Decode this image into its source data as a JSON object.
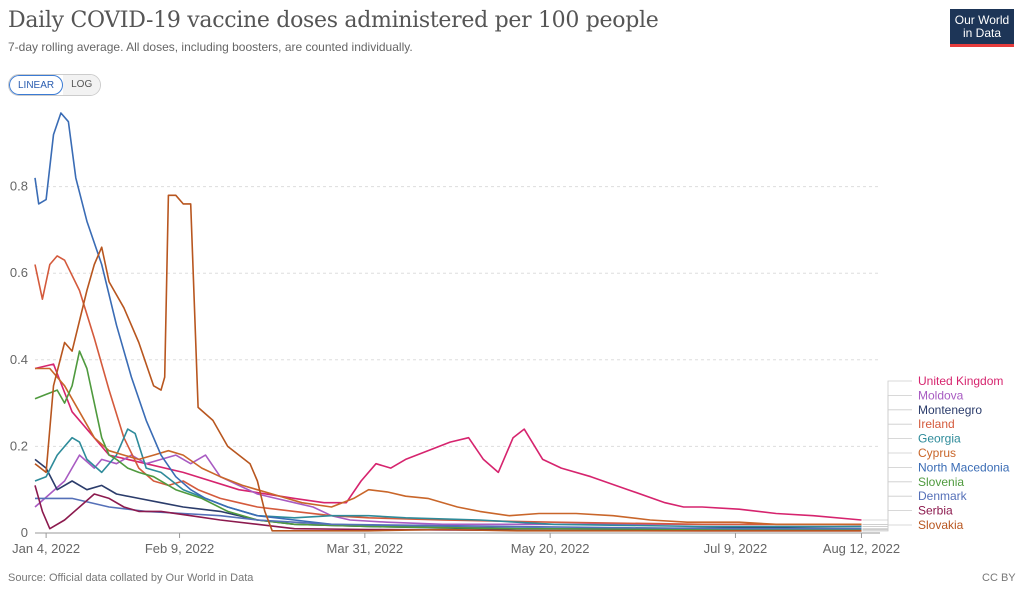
{
  "header": {
    "title": "Daily COVID-19 vaccine doses administered per 100 people",
    "subtitle": "7-day rolling average. All doses, including boosters, are counted individually.",
    "logo_line1": "Our World",
    "logo_line2": "in Data"
  },
  "controls": {
    "linear_label": "LINEAR",
    "log_label": "LOG",
    "selected": "LINEAR"
  },
  "footer": {
    "source": "Source: Official data collated by Our World in Data",
    "license": "CC BY"
  },
  "chart_data": {
    "type": "line",
    "title": "Daily COVID-19 vaccine doses administered per 100 people",
    "x_ticks": [
      "Jan 4, 2022",
      "Feb 9, 2022",
      "Mar 31, 2022",
      "May 20, 2022",
      "Jul 9, 2022",
      "Aug 12, 2022"
    ],
    "x_tick_days": [
      3,
      39,
      89,
      139,
      189,
      223
    ],
    "x_range": [
      "2022-01-01",
      "2022-08-28"
    ],
    "ylim": [
      0,
      1.0
    ],
    "y_ticks": [
      0,
      0.2,
      0.4,
      0.6,
      0.8
    ],
    "grid": "horizontal-dashed",
    "legend_position": "right",
    "series": [
      {
        "name": "United Kingdom",
        "color": "#d6246e",
        "points": [
          [
            0,
            0.38
          ],
          [
            5,
            0.39
          ],
          [
            10,
            0.28
          ],
          [
            20,
            0.18
          ],
          [
            30,
            0.16
          ],
          [
            40,
            0.14
          ],
          [
            55,
            0.1
          ],
          [
            70,
            0.08
          ],
          [
            78,
            0.07
          ],
          [
            84,
            0.07
          ],
          [
            88,
            0.12
          ],
          [
            92,
            0.16
          ],
          [
            96,
            0.15
          ],
          [
            100,
            0.17
          ],
          [
            106,
            0.19
          ],
          [
            112,
            0.21
          ],
          [
            117,
            0.22
          ],
          [
            121,
            0.17
          ],
          [
            125,
            0.14
          ],
          [
            129,
            0.22
          ],
          [
            132,
            0.24
          ],
          [
            137,
            0.17
          ],
          [
            142,
            0.15
          ],
          [
            150,
            0.13
          ],
          [
            160,
            0.1
          ],
          [
            170,
            0.07
          ],
          [
            175,
            0.06
          ],
          [
            180,
            0.06
          ],
          [
            190,
            0.055
          ],
          [
            200,
            0.045
          ],
          [
            210,
            0.04
          ],
          [
            223,
            0.03
          ]
        ]
      },
      {
        "name": "Moldova",
        "color": "#a85bc2",
        "points": [
          [
            0,
            0.06
          ],
          [
            4,
            0.09
          ],
          [
            8,
            0.12
          ],
          [
            12,
            0.18
          ],
          [
            16,
            0.15
          ],
          [
            18,
            0.17
          ],
          [
            22,
            0.16
          ],
          [
            26,
            0.18
          ],
          [
            30,
            0.16
          ],
          [
            34,
            0.17
          ],
          [
            38,
            0.18
          ],
          [
            42,
            0.16
          ],
          [
            46,
            0.18
          ],
          [
            50,
            0.13
          ],
          [
            55,
            0.11
          ],
          [
            60,
            0.09
          ],
          [
            65,
            0.08
          ],
          [
            70,
            0.07
          ],
          [
            75,
            0.06
          ],
          [
            80,
            0.04
          ],
          [
            85,
            0.03
          ],
          [
            95,
            0.025
          ],
          [
            110,
            0.02
          ],
          [
            140,
            0.02
          ],
          [
            180,
            0.02
          ],
          [
            223,
            0.02
          ]
        ]
      },
      {
        "name": "Montenegro",
        "color": "#2b3c6b",
        "points": [
          [
            0,
            0.17
          ],
          [
            3,
            0.15
          ],
          [
            6,
            0.1
          ],
          [
            10,
            0.12
          ],
          [
            14,
            0.1
          ],
          [
            18,
            0.11
          ],
          [
            22,
            0.09
          ],
          [
            28,
            0.08
          ],
          [
            34,
            0.07
          ],
          [
            40,
            0.06
          ],
          [
            50,
            0.05
          ],
          [
            60,
            0.03
          ],
          [
            70,
            0.02
          ],
          [
            90,
            0.015
          ],
          [
            120,
            0.01
          ],
          [
            160,
            0.01
          ],
          [
            223,
            0.015
          ]
        ]
      },
      {
        "name": "Ireland",
        "color": "#d45a3c",
        "points": [
          [
            0,
            0.62
          ],
          [
            2,
            0.54
          ],
          [
            4,
            0.62
          ],
          [
            6,
            0.64
          ],
          [
            8,
            0.63
          ],
          [
            12,
            0.56
          ],
          [
            16,
            0.45
          ],
          [
            20,
            0.33
          ],
          [
            24,
            0.22
          ],
          [
            28,
            0.15
          ],
          [
            32,
            0.12
          ],
          [
            36,
            0.11
          ],
          [
            40,
            0.12
          ],
          [
            44,
            0.1
          ],
          [
            50,
            0.08
          ],
          [
            55,
            0.07
          ],
          [
            60,
            0.06
          ],
          [
            70,
            0.05
          ],
          [
            80,
            0.04
          ],
          [
            90,
            0.035
          ],
          [
            110,
            0.03
          ],
          [
            140,
            0.025
          ],
          [
            180,
            0.02
          ],
          [
            223,
            0.02
          ]
        ]
      },
      {
        "name": "Georgia",
        "color": "#2e8b9a",
        "points": [
          [
            0,
            0.12
          ],
          [
            3,
            0.13
          ],
          [
            6,
            0.18
          ],
          [
            8,
            0.2
          ],
          [
            10,
            0.22
          ],
          [
            12,
            0.21
          ],
          [
            14,
            0.17
          ],
          [
            18,
            0.14
          ],
          [
            22,
            0.18
          ],
          [
            25,
            0.24
          ],
          [
            27,
            0.23
          ],
          [
            30,
            0.15
          ],
          [
            34,
            0.14
          ],
          [
            40,
            0.1
          ],
          [
            46,
            0.08
          ],
          [
            52,
            0.06
          ],
          [
            60,
            0.04
          ],
          [
            70,
            0.035
          ],
          [
            80,
            0.04
          ],
          [
            90,
            0.04
          ],
          [
            100,
            0.035
          ],
          [
            120,
            0.03
          ],
          [
            140,
            0.02
          ],
          [
            180,
            0.015
          ],
          [
            223,
            0.015
          ]
        ]
      },
      {
        "name": "Cyprus",
        "color": "#c9662a",
        "points": [
          [
            0,
            0.38
          ],
          [
            4,
            0.38
          ],
          [
            8,
            0.34
          ],
          [
            12,
            0.28
          ],
          [
            16,
            0.22
          ],
          [
            20,
            0.19
          ],
          [
            24,
            0.18
          ],
          [
            28,
            0.17
          ],
          [
            32,
            0.18
          ],
          [
            36,
            0.19
          ],
          [
            40,
            0.18
          ],
          [
            45,
            0.15
          ],
          [
            50,
            0.13
          ],
          [
            56,
            0.11
          ],
          [
            64,
            0.09
          ],
          [
            72,
            0.07
          ],
          [
            80,
            0.06
          ],
          [
            86,
            0.08
          ],
          [
            90,
            0.1
          ],
          [
            95,
            0.095
          ],
          [
            100,
            0.085
          ],
          [
            106,
            0.08
          ],
          [
            114,
            0.06
          ],
          [
            120,
            0.05
          ],
          [
            128,
            0.04
          ],
          [
            136,
            0.045
          ],
          [
            146,
            0.045
          ],
          [
            156,
            0.04
          ],
          [
            166,
            0.03
          ],
          [
            176,
            0.025
          ],
          [
            190,
            0.025
          ],
          [
            200,
            0.02
          ],
          [
            223,
            0.02
          ]
        ]
      },
      {
        "name": "North Macedonia",
        "color": "#3a6cb5",
        "points": [
          [
            0,
            0.82
          ],
          [
            1,
            0.76
          ],
          [
            3,
            0.77
          ],
          [
            5,
            0.92
          ],
          [
            7,
            0.97
          ],
          [
            9,
            0.95
          ],
          [
            11,
            0.82
          ],
          [
            14,
            0.72
          ],
          [
            18,
            0.62
          ],
          [
            22,
            0.48
          ],
          [
            26,
            0.36
          ],
          [
            30,
            0.26
          ],
          [
            34,
            0.18
          ],
          [
            38,
            0.13
          ],
          [
            42,
            0.1
          ],
          [
            46,
            0.08
          ],
          [
            52,
            0.06
          ],
          [
            60,
            0.04
          ],
          [
            70,
            0.03
          ],
          [
            80,
            0.02
          ],
          [
            100,
            0.015
          ],
          [
            140,
            0.01
          ],
          [
            180,
            0.008
          ],
          [
            223,
            0.008
          ]
        ]
      },
      {
        "name": "Slovenia",
        "color": "#4f9a3e",
        "points": [
          [
            0,
            0.31
          ],
          [
            3,
            0.32
          ],
          [
            6,
            0.33
          ],
          [
            8,
            0.3
          ],
          [
            10,
            0.34
          ],
          [
            12,
            0.42
          ],
          [
            14,
            0.38
          ],
          [
            16,
            0.3
          ],
          [
            18,
            0.22
          ],
          [
            20,
            0.18
          ],
          [
            22,
            0.17
          ],
          [
            25,
            0.15
          ],
          [
            28,
            0.14
          ],
          [
            32,
            0.13
          ],
          [
            38,
            0.1
          ],
          [
            45,
            0.08
          ],
          [
            52,
            0.05
          ],
          [
            60,
            0.03
          ],
          [
            70,
            0.02
          ],
          [
            90,
            0.015
          ],
          [
            130,
            0.01
          ],
          [
            180,
            0.008
          ],
          [
            223,
            0.008
          ]
        ]
      },
      {
        "name": "Denmark",
        "color": "#5570b8",
        "points": [
          [
            0,
            0.08
          ],
          [
            10,
            0.08
          ],
          [
            20,
            0.06
          ],
          [
            30,
            0.05
          ],
          [
            40,
            0.045
          ],
          [
            50,
            0.04
          ],
          [
            60,
            0.03
          ],
          [
            70,
            0.025
          ],
          [
            80,
            0.02
          ],
          [
            100,
            0.018
          ],
          [
            130,
            0.015
          ],
          [
            160,
            0.012
          ],
          [
            190,
            0.01
          ],
          [
            223,
            0.01
          ]
        ]
      },
      {
        "name": "Serbia",
        "color": "#8c1a4e",
        "points": [
          [
            0,
            0.11
          ],
          [
            2,
            0.05
          ],
          [
            4,
            0.01
          ],
          [
            8,
            0.03
          ],
          [
            12,
            0.06
          ],
          [
            16,
            0.09
          ],
          [
            20,
            0.08
          ],
          [
            24,
            0.06
          ],
          [
            28,
            0.05
          ],
          [
            34,
            0.05
          ],
          [
            42,
            0.04
          ],
          [
            50,
            0.03
          ],
          [
            60,
            0.02
          ],
          [
            70,
            0.01
          ],
          [
            90,
            0.008
          ],
          [
            130,
            0.006
          ],
          [
            180,
            0.005
          ],
          [
            223,
            0.005
          ]
        ]
      },
      {
        "name": "Slovakia",
        "color": "#b8561f",
        "points": [
          [
            0,
            0.16
          ],
          [
            3,
            0.14
          ],
          [
            5,
            0.34
          ],
          [
            8,
            0.44
          ],
          [
            10,
            0.42
          ],
          [
            14,
            0.56
          ],
          [
            16,
            0.62
          ],
          [
            18,
            0.66
          ],
          [
            20,
            0.58
          ],
          [
            24,
            0.52
          ],
          [
            28,
            0.44
          ],
          [
            32,
            0.34
          ],
          [
            34,
            0.33
          ],
          [
            35,
            0.36
          ],
          [
            36,
            0.78
          ],
          [
            38,
            0.78
          ],
          [
            40,
            0.76
          ],
          [
            42,
            0.76
          ],
          [
            44,
            0.29
          ],
          [
            48,
            0.26
          ],
          [
            52,
            0.2
          ],
          [
            58,
            0.16
          ],
          [
            60,
            0.12
          ],
          [
            62,
            0.05
          ],
          [
            64,
            0.005
          ],
          [
            70,
            0.005
          ],
          [
            90,
            0.005
          ],
          [
            110,
            0.008
          ],
          [
            130,
            0.005
          ],
          [
            160,
            0.005
          ],
          [
            223,
            0.005
          ]
        ]
      }
    ]
  }
}
